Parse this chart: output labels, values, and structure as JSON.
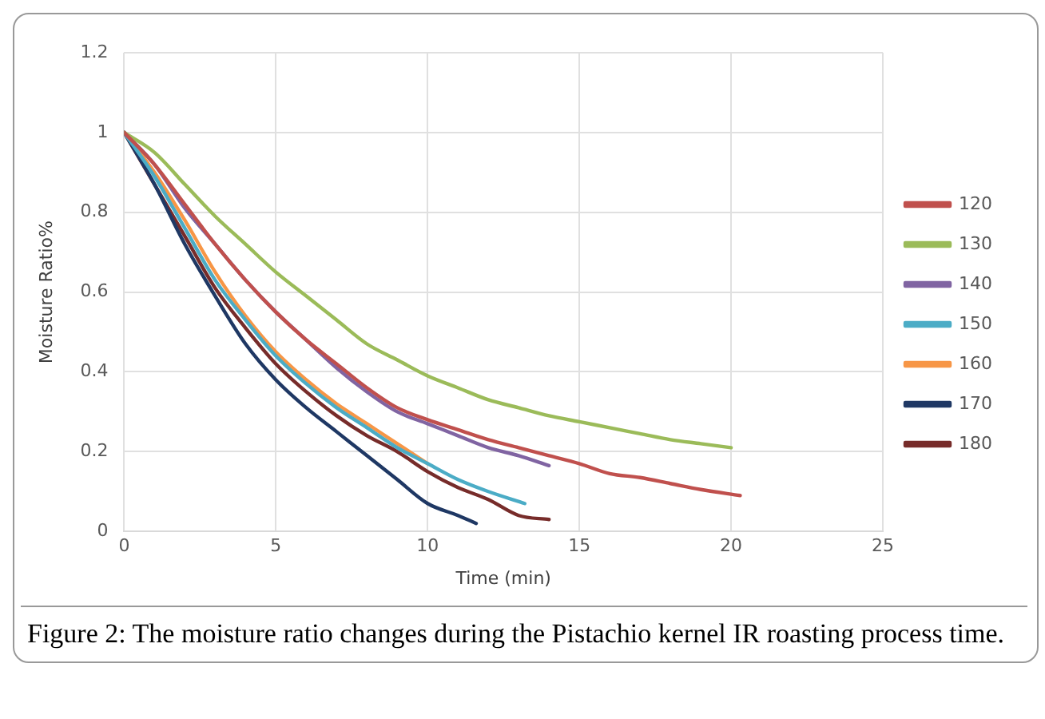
{
  "chart_data": {
    "type": "line",
    "xlabel": "Time (min)",
    "ylabel": "Moisture Ratio%",
    "xlim": [
      0,
      25
    ],
    "xticks": [
      0,
      5,
      10,
      15,
      20,
      25
    ],
    "ylim": [
      0,
      1.2
    ],
    "yticks": [
      0,
      0.2,
      0.4,
      0.6,
      0.8,
      1,
      1.2
    ],
    "grid": true,
    "legend": "right",
    "marker": "none",
    "line_style": "solid",
    "annotations": [
      "Figure 2: The moisture ratio changes during the Pistachio kernel IR roasting process time."
    ],
    "series": [
      {
        "name": "120",
        "color": "#c0504d",
        "x": [
          0,
          1,
          2,
          3,
          4,
          5,
          6,
          7,
          8,
          9,
          10,
          11,
          12,
          13,
          14,
          15,
          16,
          17,
          18,
          19,
          20.3
        ],
        "values": [
          1,
          0.92,
          0.82,
          0.72,
          0.63,
          0.55,
          0.48,
          0.42,
          0.36,
          0.31,
          0.28,
          0.255,
          0.23,
          0.21,
          0.19,
          0.17,
          0.145,
          0.135,
          0.12,
          0.105,
          0.09
        ]
      },
      {
        "name": "130",
        "color": "#9bbb59",
        "x": [
          0,
          1,
          2,
          3,
          4,
          5,
          6,
          7,
          8,
          9,
          10,
          11,
          12,
          13,
          14,
          15,
          16,
          17,
          18,
          19,
          20
        ],
        "values": [
          1,
          0.95,
          0.87,
          0.79,
          0.72,
          0.65,
          0.59,
          0.53,
          0.47,
          0.43,
          0.39,
          0.36,
          0.33,
          0.31,
          0.29,
          0.275,
          0.26,
          0.245,
          0.23,
          0.22,
          0.21
        ]
      },
      {
        "name": "140",
        "color": "#8064a2",
        "x": [
          0,
          1,
          2,
          3,
          4,
          5,
          6,
          7,
          8,
          9,
          10,
          11,
          12,
          13,
          14
        ],
        "values": [
          1,
          0.92,
          0.81,
          0.72,
          0.63,
          0.55,
          0.48,
          0.41,
          0.35,
          0.3,
          0.27,
          0.24,
          0.21,
          0.19,
          0.165
        ]
      },
      {
        "name": "150",
        "color": "#4bacc6",
        "x": [
          0,
          1,
          2,
          3,
          4,
          5,
          6,
          7,
          8,
          9,
          10,
          11,
          12,
          13.2
        ],
        "values": [
          1,
          0.89,
          0.76,
          0.63,
          0.53,
          0.44,
          0.37,
          0.31,
          0.26,
          0.21,
          0.17,
          0.13,
          0.1,
          0.07
        ]
      },
      {
        "name": "160",
        "color": "#f79646",
        "x": [
          0,
          1,
          2,
          3,
          4,
          5,
          6,
          7,
          8,
          9,
          10
        ],
        "values": [
          1,
          0.9,
          0.78,
          0.65,
          0.54,
          0.45,
          0.38,
          0.32,
          0.27,
          0.22,
          0.17
        ]
      },
      {
        "name": "170",
        "color": "#1f3864",
        "x": [
          0,
          1,
          2,
          3,
          4,
          5,
          6,
          7,
          8,
          9,
          10,
          11,
          11.6
        ],
        "values": [
          1,
          0.87,
          0.72,
          0.59,
          0.47,
          0.38,
          0.31,
          0.25,
          0.19,
          0.13,
          0.07,
          0.04,
          0.02
        ]
      },
      {
        "name": "180",
        "color": "#772c2a",
        "x": [
          0,
          1,
          2,
          3,
          4,
          5,
          6,
          7,
          8,
          9,
          10,
          11,
          12,
          13,
          14
        ],
        "values": [
          1,
          0.87,
          0.74,
          0.61,
          0.51,
          0.42,
          0.35,
          0.29,
          0.24,
          0.2,
          0.15,
          0.11,
          0.08,
          0.04,
          0.03
        ]
      }
    ]
  }
}
